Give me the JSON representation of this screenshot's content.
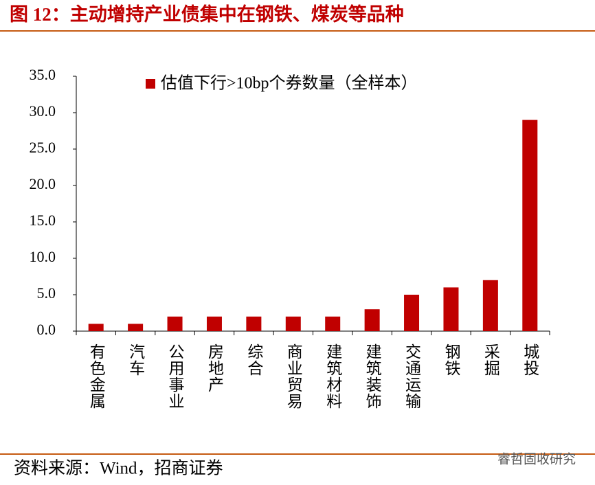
{
  "header": {
    "title": "图 12：主动增持产业债集中在钢铁、煤炭等品种"
  },
  "chart_data": {
    "type": "bar",
    "categories": [
      "有色金属",
      "汽车",
      "公用事业",
      "房地产",
      "综合",
      "商业贸易",
      "建筑材料",
      "建筑装饰",
      "交通运输",
      "钢铁",
      "采掘",
      "城投"
    ],
    "series": [
      {
        "name": "估值下行>10bp个券数量（全样本）",
        "color": "#c00000",
        "values": [
          1,
          1,
          2,
          2,
          2,
          2,
          2,
          3,
          5,
          6,
          7,
          29
        ]
      }
    ],
    "ylim": [
      0,
      35
    ],
    "yticks": [
      {
        "value": 0,
        "label": "0.0"
      },
      {
        "value": 5,
        "label": "5.0"
      },
      {
        "value": 10,
        "label": "10.0"
      },
      {
        "value": 15,
        "label": "15.0"
      },
      {
        "value": 20,
        "label": "20.0"
      },
      {
        "value": 25,
        "label": "25.0"
      },
      {
        "value": 30,
        "label": "30.0"
      },
      {
        "value": 35,
        "label": "35.0"
      }
    ],
    "grid": false,
    "legend": "top"
  },
  "footer": {
    "source": "资料来源：Wind，招商证券",
    "watermark": "睿哲固收研究"
  }
}
